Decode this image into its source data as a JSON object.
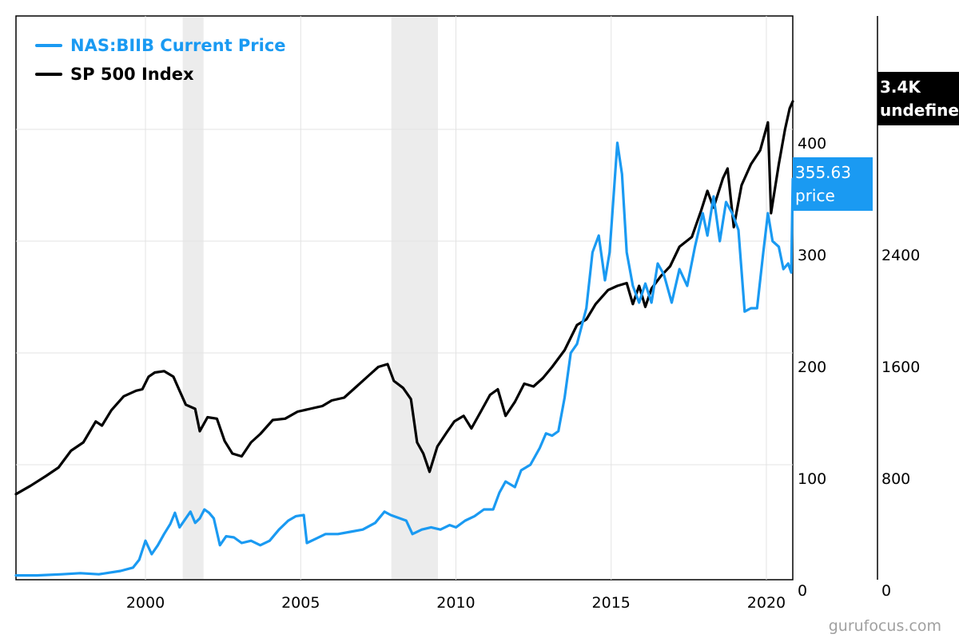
{
  "chart_data": {
    "type": "line",
    "title": "",
    "xlabel": "",
    "ylabel": "",
    "xlim": [
      1995.83,
      2020.85
    ],
    "x_ticks": [
      "2000",
      "2005",
      "2010",
      "2015",
      "2020"
    ],
    "y_left": {
      "range": [
        0,
        400
      ],
      "ticks": [
        "0",
        "100",
        "200",
        "300",
        "400"
      ]
    },
    "y_right": {
      "range": [
        0,
        3200
      ],
      "ticks": [
        "0",
        "800",
        "1600",
        "2400"
      ]
    },
    "grid": true,
    "legend_position": "top-left",
    "recessions": [
      [
        2001.2,
        2001.87
      ],
      [
        2007.92,
        2009.42
      ]
    ],
    "series": [
      {
        "name": "NAS:BIIB Current Price",
        "axis": "left",
        "color": "#1a9af2",
        "points": [
          [
            1995.83,
            1
          ],
          [
            1996.5,
            1
          ],
          [
            1997.3,
            2
          ],
          [
            1997.9,
            3
          ],
          [
            1998.5,
            2
          ],
          [
            1999.2,
            5
          ],
          [
            1999.6,
            8
          ],
          [
            1999.8,
            15
          ],
          [
            2000.0,
            32
          ],
          [
            2000.2,
            20
          ],
          [
            2000.4,
            28
          ],
          [
            2000.6,
            38
          ],
          [
            2000.8,
            47
          ],
          [
            2000.95,
            57
          ],
          [
            2001.1,
            44
          ],
          [
            2001.3,
            52
          ],
          [
            2001.45,
            58
          ],
          [
            2001.6,
            48
          ],
          [
            2001.75,
            52
          ],
          [
            2001.9,
            60
          ],
          [
            2002.05,
            57
          ],
          [
            2002.2,
            52
          ],
          [
            2002.4,
            28
          ],
          [
            2002.6,
            36
          ],
          [
            2002.85,
            35
          ],
          [
            2003.1,
            30
          ],
          [
            2003.4,
            32
          ],
          [
            2003.7,
            28
          ],
          [
            2004.0,
            32
          ],
          [
            2004.3,
            42
          ],
          [
            2004.6,
            50
          ],
          [
            2004.85,
            54
          ],
          [
            2005.1,
            55
          ],
          [
            2005.2,
            30
          ],
          [
            2005.5,
            34
          ],
          [
            2005.8,
            38
          ],
          [
            2006.2,
            38
          ],
          [
            2006.6,
            40
          ],
          [
            2007.0,
            42
          ],
          [
            2007.4,
            48
          ],
          [
            2007.7,
            58
          ],
          [
            2007.9,
            55
          ],
          [
            2008.2,
            52
          ],
          [
            2008.4,
            50
          ],
          [
            2008.6,
            38
          ],
          [
            2008.9,
            42
          ],
          [
            2009.2,
            44
          ],
          [
            2009.5,
            42
          ],
          [
            2009.8,
            46
          ],
          [
            2010.0,
            44
          ],
          [
            2010.3,
            50
          ],
          [
            2010.6,
            54
          ],
          [
            2010.9,
            60
          ],
          [
            2011.2,
            60
          ],
          [
            2011.4,
            75
          ],
          [
            2011.6,
            85
          ],
          [
            2011.9,
            80
          ],
          [
            2012.1,
            95
          ],
          [
            2012.4,
            100
          ],
          [
            2012.7,
            115
          ],
          [
            2012.9,
            128
          ],
          [
            2013.1,
            126
          ],
          [
            2013.3,
            130
          ],
          [
            2013.5,
            160
          ],
          [
            2013.7,
            200
          ],
          [
            2013.9,
            208
          ],
          [
            2014.2,
            240
          ],
          [
            2014.4,
            290
          ],
          [
            2014.6,
            305
          ],
          [
            2014.8,
            265
          ],
          [
            2014.95,
            290
          ],
          [
            2015.2,
            388
          ],
          [
            2015.35,
            360
          ],
          [
            2015.5,
            290
          ],
          [
            2015.7,
            260
          ],
          [
            2015.9,
            245
          ],
          [
            2016.1,
            262
          ],
          [
            2016.3,
            245
          ],
          [
            2016.5,
            280
          ],
          [
            2016.7,
            270
          ],
          [
            2016.95,
            245
          ],
          [
            2017.2,
            275
          ],
          [
            2017.45,
            260
          ],
          [
            2017.7,
            295
          ],
          [
            2017.95,
            325
          ],
          [
            2018.1,
            305
          ],
          [
            2018.3,
            340
          ],
          [
            2018.5,
            300
          ],
          [
            2018.7,
            335
          ],
          [
            2018.9,
            325
          ],
          [
            2019.1,
            310
          ],
          [
            2019.3,
            237
          ],
          [
            2019.5,
            240
          ],
          [
            2019.7,
            240
          ],
          [
            2019.9,
            290
          ],
          [
            2020.05,
            325
          ],
          [
            2020.2,
            300
          ],
          [
            2020.4,
            295
          ],
          [
            2020.55,
            275
          ],
          [
            2020.7,
            280
          ],
          [
            2020.8,
            272
          ],
          [
            2020.85,
            355.63
          ]
        ]
      },
      {
        "name": "SP 500 Index",
        "axis": "right",
        "color": "#000000",
        "points": [
          [
            1995.83,
            590
          ],
          [
            1996.3,
            650
          ],
          [
            1996.8,
            720
          ],
          [
            1997.2,
            780
          ],
          [
            1997.6,
            900
          ],
          [
            1998.0,
            960
          ],
          [
            1998.4,
            1110
          ],
          [
            1998.6,
            1080
          ],
          [
            1998.9,
            1190
          ],
          [
            1999.3,
            1290
          ],
          [
            1999.7,
            1330
          ],
          [
            1999.9,
            1340
          ],
          [
            2000.1,
            1430
          ],
          [
            2000.3,
            1460
          ],
          [
            2000.6,
            1470
          ],
          [
            2000.9,
            1430
          ],
          [
            2001.1,
            1330
          ],
          [
            2001.3,
            1230
          ],
          [
            2001.6,
            1200
          ],
          [
            2001.75,
            1040
          ],
          [
            2002.0,
            1140
          ],
          [
            2002.3,
            1130
          ],
          [
            2002.55,
            970
          ],
          [
            2002.8,
            880
          ],
          [
            2003.1,
            860
          ],
          [
            2003.4,
            960
          ],
          [
            2003.7,
            1020
          ],
          [
            2004.1,
            1120
          ],
          [
            2004.5,
            1130
          ],
          [
            2004.9,
            1180
          ],
          [
            2005.3,
            1200
          ],
          [
            2005.7,
            1220
          ],
          [
            2006.0,
            1260
          ],
          [
            2006.4,
            1280
          ],
          [
            2006.8,
            1360
          ],
          [
            2007.2,
            1440
          ],
          [
            2007.5,
            1500
          ],
          [
            2007.8,
            1520
          ],
          [
            2008.0,
            1400
          ],
          [
            2008.3,
            1350
          ],
          [
            2008.55,
            1270
          ],
          [
            2008.75,
            960
          ],
          [
            2008.95,
            880
          ],
          [
            2009.15,
            750
          ],
          [
            2009.4,
            930
          ],
          [
            2009.7,
            1030
          ],
          [
            2009.95,
            1110
          ],
          [
            2010.25,
            1150
          ],
          [
            2010.5,
            1060
          ],
          [
            2010.8,
            1180
          ],
          [
            2011.1,
            1300
          ],
          [
            2011.35,
            1340
          ],
          [
            2011.6,
            1150
          ],
          [
            2011.9,
            1250
          ],
          [
            2012.2,
            1380
          ],
          [
            2012.5,
            1360
          ],
          [
            2012.8,
            1420
          ],
          [
            2013.1,
            1500
          ],
          [
            2013.5,
            1620
          ],
          [
            2013.9,
            1800
          ],
          [
            2014.2,
            1840
          ],
          [
            2014.5,
            1950
          ],
          [
            2014.9,
            2050
          ],
          [
            2015.2,
            2080
          ],
          [
            2015.5,
            2100
          ],
          [
            2015.7,
            1950
          ],
          [
            2015.9,
            2080
          ],
          [
            2016.1,
            1930
          ],
          [
            2016.3,
            2060
          ],
          [
            2016.6,
            2150
          ],
          [
            2016.9,
            2220
          ],
          [
            2017.2,
            2360
          ],
          [
            2017.6,
            2430
          ],
          [
            2017.9,
            2620
          ],
          [
            2018.1,
            2760
          ],
          [
            2018.3,
            2640
          ],
          [
            2018.6,
            2850
          ],
          [
            2018.75,
            2920
          ],
          [
            2018.95,
            2500
          ],
          [
            2019.2,
            2800
          ],
          [
            2019.5,
            2950
          ],
          [
            2019.8,
            3050
          ],
          [
            2020.05,
            3250
          ],
          [
            2020.15,
            2600
          ],
          [
            2020.4,
            2950
          ],
          [
            2020.6,
            3200
          ],
          [
            2020.75,
            3350
          ],
          [
            2020.85,
            3400
          ]
        ]
      }
    ],
    "end_labels": [
      {
        "series": "NAS:BIIB Current Price",
        "line1": "355.63",
        "line2": "price",
        "color": "#1a9af2"
      },
      {
        "series": "SP 500 Index",
        "line1": "3.4K",
        "line2": "undefined",
        "color": "#000000"
      }
    ],
    "watermark": "gurufocus.com"
  }
}
